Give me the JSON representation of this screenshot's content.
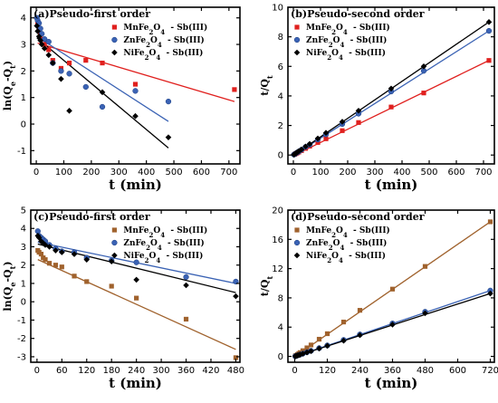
{
  "chart_data": [
    {
      "type": "scatter",
      "panel": "a",
      "title": "(a)Pseudo-first order",
      "xlabel": "t (min)",
      "ylabel": "ln(Qe-Qt)",
      "xlim": [
        -20,
        740
      ],
      "ylim": [
        -1.5,
        4.4
      ],
      "xticks": [
        0,
        100,
        200,
        300,
        400,
        500,
        600,
        700
      ],
      "yticks": [
        -1,
        0,
        1,
        2,
        3,
        4
      ],
      "legend_position": "top-right",
      "series": [
        {
          "name": "MnFe2O4 - Sb(III)",
          "marker": "square",
          "color": "#e0201e",
          "x": [
            5,
            10,
            15,
            20,
            30,
            45,
            60,
            90,
            120,
            180,
            240,
            360,
            720
          ],
          "y": [
            3.8,
            3.6,
            3.4,
            3.2,
            3.0,
            2.8,
            2.4,
            2.1,
            2.3,
            2.4,
            2.3,
            1.5,
            1.3
          ],
          "fit": [
            3.05,
            0.85
          ]
        },
        {
          "name": "ZnFe2O4 - Sb(III)",
          "marker": "circle",
          "color": "#3a62b4",
          "x": [
            2,
            5,
            10,
            15,
            20,
            30,
            45,
            60,
            90,
            120,
            180,
            240,
            360,
            480
          ],
          "y": [
            4.0,
            3.9,
            3.8,
            3.6,
            3.4,
            3.2,
            3.1,
            2.3,
            2.0,
            1.9,
            1.4,
            0.65,
            1.25,
            0.85
          ],
          "fit": [
            3.3,
            0.1
          ]
        },
        {
          "name": "NiFe2O4 - Sb(III)",
          "marker": "diamond",
          "color": "#000000",
          "x": [
            2,
            5,
            10,
            15,
            20,
            30,
            45,
            60,
            90,
            120,
            240,
            360,
            480
          ],
          "y": [
            3.7,
            3.5,
            3.3,
            3.15,
            3.0,
            2.85,
            2.6,
            2.3,
            1.7,
            0.5,
            1.2,
            0.3,
            -0.5
          ],
          "fit": [
            3.25,
            -0.9
          ]
        }
      ]
    },
    {
      "type": "scatter",
      "panel": "b",
      "title": "(b)Pseudo-second order",
      "xlabel": "t (min)",
      "ylabel": "t/Qt",
      "xlim": [
        -20,
        740
      ],
      "ylim": [
        -0.6,
        10
      ],
      "xticks": [
        0,
        100,
        200,
        300,
        400,
        500,
        600,
        700
      ],
      "yticks": [
        0,
        2,
        4,
        6,
        8,
        10
      ],
      "legend_position": "top-left",
      "series": [
        {
          "name": "MnFe2O4 - Sb(III)",
          "marker": "square",
          "color": "#e0201e",
          "x": [
            5,
            10,
            15,
            20,
            30,
            45,
            60,
            90,
            120,
            180,
            240,
            360,
            480,
            720
          ],
          "y": [
            0.05,
            0.1,
            0.15,
            0.2,
            0.3,
            0.45,
            0.6,
            0.85,
            1.1,
            1.65,
            2.2,
            3.25,
            4.2,
            6.4
          ],
          "fit": [
            0.0,
            6.4
          ]
        },
        {
          "name": "ZnFe2O4 - Sb(III)",
          "marker": "circle",
          "color": "#3a62b4",
          "x": [
            2,
            5,
            10,
            15,
            20,
            30,
            45,
            60,
            90,
            120,
            180,
            240,
            360,
            480,
            720
          ],
          "y": [
            0.03,
            0.06,
            0.12,
            0.18,
            0.24,
            0.36,
            0.55,
            0.7,
            1.05,
            1.4,
            2.1,
            2.8,
            4.3,
            5.7,
            8.4
          ],
          "fit": [
            0.0,
            8.4
          ]
        },
        {
          "name": "NiFe2O4 - Sb(III)",
          "marker": "diamond",
          "color": "#000000",
          "x": [
            2,
            5,
            10,
            15,
            20,
            30,
            45,
            60,
            90,
            120,
            180,
            240,
            360,
            480,
            720
          ],
          "y": [
            0.03,
            0.07,
            0.13,
            0.19,
            0.26,
            0.38,
            0.58,
            0.75,
            1.12,
            1.5,
            2.25,
            3.0,
            4.5,
            6.0,
            9.0
          ],
          "fit": [
            0.0,
            9.0
          ]
        }
      ]
    },
    {
      "type": "scatter",
      "panel": "c",
      "title": "(c)Pseudo-first order",
      "xlabel": "t (min)",
      "ylabel": "ln(Qe-Qt)",
      "xlim": [
        -15,
        490
      ],
      "ylim": [
        -3.3,
        5
      ],
      "xticks": [
        0,
        60,
        120,
        180,
        240,
        300,
        360,
        420,
        480
      ],
      "yticks": [
        -3,
        -2,
        -1,
        0,
        1,
        2,
        3,
        4,
        5
      ],
      "legend_position": "top-right",
      "series": [
        {
          "name": "MnFe2O4 - Sb(III)",
          "marker": "square",
          "color": "#a0622d",
          "x": [
            2,
            5,
            10,
            15,
            20,
            30,
            45,
            60,
            90,
            120,
            180,
            240,
            360,
            480
          ],
          "y": [
            2.8,
            2.7,
            2.6,
            2.4,
            2.3,
            2.1,
            2.0,
            1.9,
            1.4,
            1.1,
            0.85,
            0.2,
            -0.95,
            -3.05
          ],
          "fit": [
            2.3,
            -2.6
          ]
        },
        {
          "name": "ZnFe2O4 - Sb(III)",
          "marker": "circle",
          "color": "#3a62b4",
          "x": [
            2,
            5,
            10,
            15,
            20,
            30,
            45,
            60,
            90,
            120,
            180,
            240,
            360,
            480
          ],
          "y": [
            3.85,
            3.6,
            3.5,
            3.4,
            3.3,
            3.1,
            2.9,
            2.75,
            2.7,
            2.4,
            2.25,
            2.15,
            1.35,
            1.1
          ],
          "fit": [
            3.25,
            1.0
          ]
        },
        {
          "name": "NiFe2O4 - Sb(III)",
          "marker": "diamond",
          "color": "#000000",
          "x": [
            2,
            5,
            10,
            15,
            20,
            30,
            45,
            60,
            90,
            120,
            180,
            240,
            360,
            480
          ],
          "y": [
            3.6,
            3.5,
            3.3,
            3.2,
            3.1,
            3.0,
            2.8,
            2.7,
            2.6,
            2.3,
            2.2,
            1.2,
            0.9,
            0.3
          ],
          "fit": [
            3.15,
            0.5
          ]
        }
      ]
    },
    {
      "type": "scatter",
      "panel": "d",
      "title": "(d)Pseudo-second order",
      "xlabel": "t (min)",
      "ylabel": "t/Qt",
      "xlim": [
        -25,
        735
      ],
      "ylim": [
        -0.8,
        20
      ],
      "xticks": [
        0,
        120,
        240,
        360,
        480,
        600,
        720
      ],
      "yticks": [
        0,
        4,
        8,
        12,
        16,
        20
      ],
      "legend_position": "top-left",
      "series": [
        {
          "name": "MnFe2O4 - Sb(III)",
          "marker": "square",
          "color": "#a0622d",
          "x": [
            2,
            5,
            10,
            15,
            20,
            30,
            45,
            60,
            90,
            120,
            180,
            240,
            360,
            480,
            720
          ],
          "y": [
            0.05,
            0.13,
            0.26,
            0.39,
            0.52,
            0.78,
            1.17,
            1.56,
            2.35,
            3.1,
            4.7,
            6.3,
            9.2,
            12.3,
            18.4
          ],
          "fit": [
            0.0,
            18.4
          ]
        },
        {
          "name": "ZnFe2O4 - Sb(III)",
          "marker": "circle",
          "color": "#3a62b4",
          "x": [
            2,
            5,
            10,
            15,
            20,
            30,
            45,
            60,
            90,
            120,
            180,
            240,
            360,
            480,
            720
          ],
          "y": [
            0.02,
            0.06,
            0.13,
            0.19,
            0.25,
            0.38,
            0.57,
            0.76,
            1.13,
            1.5,
            2.25,
            3.0,
            4.5,
            6.1,
            9.0
          ],
          "fit": [
            0.0,
            9.0
          ]
        },
        {
          "name": "NiFe2O4 - Sb(III)",
          "marker": "diamond",
          "color": "#000000",
          "x": [
            2,
            5,
            10,
            15,
            20,
            30,
            45,
            60,
            90,
            120,
            180,
            240,
            360,
            480,
            720
          ],
          "y": [
            0.02,
            0.06,
            0.12,
            0.18,
            0.24,
            0.36,
            0.54,
            0.72,
            1.08,
            1.45,
            2.15,
            2.9,
            4.35,
            5.9,
            8.6
          ],
          "fit": [
            0.0,
            8.6
          ]
        }
      ]
    }
  ]
}
